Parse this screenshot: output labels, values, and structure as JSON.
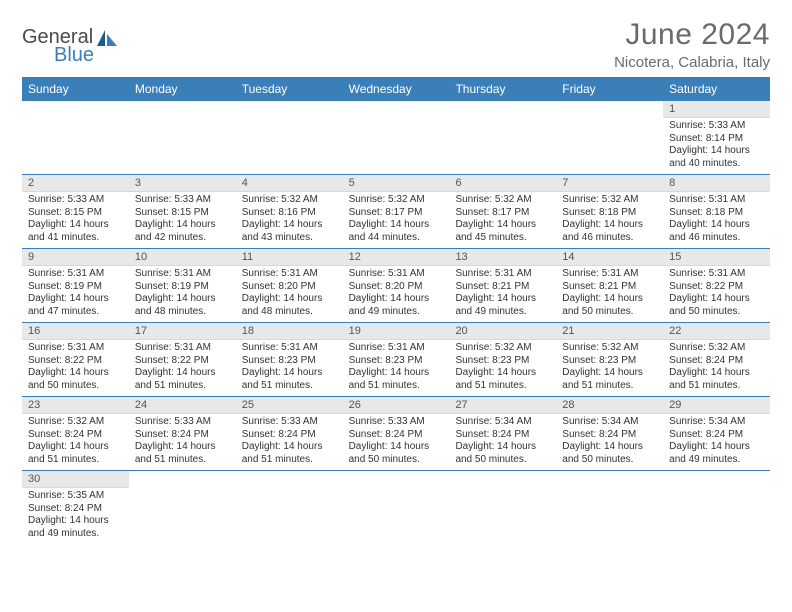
{
  "logo": {
    "text1": "General",
    "text2": "Blue"
  },
  "title": "June 2024",
  "location": "Nicotera, Calabria, Italy",
  "colors": {
    "header_bg": "#3b7fb8",
    "header_text": "#ffffff",
    "daynum_bg": "#e8e8e8",
    "border": "#3b7fb8",
    "title_color": "#6a6a6a"
  },
  "weekdays": [
    "Sunday",
    "Monday",
    "Tuesday",
    "Wednesday",
    "Thursday",
    "Friday",
    "Saturday"
  ],
  "weeks": [
    [
      {
        "n": "",
        "sr": "",
        "ss": "",
        "dl1": "",
        "dl2": ""
      },
      {
        "n": "",
        "sr": "",
        "ss": "",
        "dl1": "",
        "dl2": ""
      },
      {
        "n": "",
        "sr": "",
        "ss": "",
        "dl1": "",
        "dl2": ""
      },
      {
        "n": "",
        "sr": "",
        "ss": "",
        "dl1": "",
        "dl2": ""
      },
      {
        "n": "",
        "sr": "",
        "ss": "",
        "dl1": "",
        "dl2": ""
      },
      {
        "n": "",
        "sr": "",
        "ss": "",
        "dl1": "",
        "dl2": ""
      },
      {
        "n": "1",
        "sr": "Sunrise: 5:33 AM",
        "ss": "Sunset: 8:14 PM",
        "dl1": "Daylight: 14 hours",
        "dl2": "and 40 minutes."
      }
    ],
    [
      {
        "n": "2",
        "sr": "Sunrise: 5:33 AM",
        "ss": "Sunset: 8:15 PM",
        "dl1": "Daylight: 14 hours",
        "dl2": "and 41 minutes."
      },
      {
        "n": "3",
        "sr": "Sunrise: 5:33 AM",
        "ss": "Sunset: 8:15 PM",
        "dl1": "Daylight: 14 hours",
        "dl2": "and 42 minutes."
      },
      {
        "n": "4",
        "sr": "Sunrise: 5:32 AM",
        "ss": "Sunset: 8:16 PM",
        "dl1": "Daylight: 14 hours",
        "dl2": "and 43 minutes."
      },
      {
        "n": "5",
        "sr": "Sunrise: 5:32 AM",
        "ss": "Sunset: 8:17 PM",
        "dl1": "Daylight: 14 hours",
        "dl2": "and 44 minutes."
      },
      {
        "n": "6",
        "sr": "Sunrise: 5:32 AM",
        "ss": "Sunset: 8:17 PM",
        "dl1": "Daylight: 14 hours",
        "dl2": "and 45 minutes."
      },
      {
        "n": "7",
        "sr": "Sunrise: 5:32 AM",
        "ss": "Sunset: 8:18 PM",
        "dl1": "Daylight: 14 hours",
        "dl2": "and 46 minutes."
      },
      {
        "n": "8",
        "sr": "Sunrise: 5:31 AM",
        "ss": "Sunset: 8:18 PM",
        "dl1": "Daylight: 14 hours",
        "dl2": "and 46 minutes."
      }
    ],
    [
      {
        "n": "9",
        "sr": "Sunrise: 5:31 AM",
        "ss": "Sunset: 8:19 PM",
        "dl1": "Daylight: 14 hours",
        "dl2": "and 47 minutes."
      },
      {
        "n": "10",
        "sr": "Sunrise: 5:31 AM",
        "ss": "Sunset: 8:19 PM",
        "dl1": "Daylight: 14 hours",
        "dl2": "and 48 minutes."
      },
      {
        "n": "11",
        "sr": "Sunrise: 5:31 AM",
        "ss": "Sunset: 8:20 PM",
        "dl1": "Daylight: 14 hours",
        "dl2": "and 48 minutes."
      },
      {
        "n": "12",
        "sr": "Sunrise: 5:31 AM",
        "ss": "Sunset: 8:20 PM",
        "dl1": "Daylight: 14 hours",
        "dl2": "and 49 minutes."
      },
      {
        "n": "13",
        "sr": "Sunrise: 5:31 AM",
        "ss": "Sunset: 8:21 PM",
        "dl1": "Daylight: 14 hours",
        "dl2": "and 49 minutes."
      },
      {
        "n": "14",
        "sr": "Sunrise: 5:31 AM",
        "ss": "Sunset: 8:21 PM",
        "dl1": "Daylight: 14 hours",
        "dl2": "and 50 minutes."
      },
      {
        "n": "15",
        "sr": "Sunrise: 5:31 AM",
        "ss": "Sunset: 8:22 PM",
        "dl1": "Daylight: 14 hours",
        "dl2": "and 50 minutes."
      }
    ],
    [
      {
        "n": "16",
        "sr": "Sunrise: 5:31 AM",
        "ss": "Sunset: 8:22 PM",
        "dl1": "Daylight: 14 hours",
        "dl2": "and 50 minutes."
      },
      {
        "n": "17",
        "sr": "Sunrise: 5:31 AM",
        "ss": "Sunset: 8:22 PM",
        "dl1": "Daylight: 14 hours",
        "dl2": "and 51 minutes."
      },
      {
        "n": "18",
        "sr": "Sunrise: 5:31 AM",
        "ss": "Sunset: 8:23 PM",
        "dl1": "Daylight: 14 hours",
        "dl2": "and 51 minutes."
      },
      {
        "n": "19",
        "sr": "Sunrise: 5:31 AM",
        "ss": "Sunset: 8:23 PM",
        "dl1": "Daylight: 14 hours",
        "dl2": "and 51 minutes."
      },
      {
        "n": "20",
        "sr": "Sunrise: 5:32 AM",
        "ss": "Sunset: 8:23 PM",
        "dl1": "Daylight: 14 hours",
        "dl2": "and 51 minutes."
      },
      {
        "n": "21",
        "sr": "Sunrise: 5:32 AM",
        "ss": "Sunset: 8:23 PM",
        "dl1": "Daylight: 14 hours",
        "dl2": "and 51 minutes."
      },
      {
        "n": "22",
        "sr": "Sunrise: 5:32 AM",
        "ss": "Sunset: 8:24 PM",
        "dl1": "Daylight: 14 hours",
        "dl2": "and 51 minutes."
      }
    ],
    [
      {
        "n": "23",
        "sr": "Sunrise: 5:32 AM",
        "ss": "Sunset: 8:24 PM",
        "dl1": "Daylight: 14 hours",
        "dl2": "and 51 minutes."
      },
      {
        "n": "24",
        "sr": "Sunrise: 5:33 AM",
        "ss": "Sunset: 8:24 PM",
        "dl1": "Daylight: 14 hours",
        "dl2": "and 51 minutes."
      },
      {
        "n": "25",
        "sr": "Sunrise: 5:33 AM",
        "ss": "Sunset: 8:24 PM",
        "dl1": "Daylight: 14 hours",
        "dl2": "and 51 minutes."
      },
      {
        "n": "26",
        "sr": "Sunrise: 5:33 AM",
        "ss": "Sunset: 8:24 PM",
        "dl1": "Daylight: 14 hours",
        "dl2": "and 50 minutes."
      },
      {
        "n": "27",
        "sr": "Sunrise: 5:34 AM",
        "ss": "Sunset: 8:24 PM",
        "dl1": "Daylight: 14 hours",
        "dl2": "and 50 minutes."
      },
      {
        "n": "28",
        "sr": "Sunrise: 5:34 AM",
        "ss": "Sunset: 8:24 PM",
        "dl1": "Daylight: 14 hours",
        "dl2": "and 50 minutes."
      },
      {
        "n": "29",
        "sr": "Sunrise: 5:34 AM",
        "ss": "Sunset: 8:24 PM",
        "dl1": "Daylight: 14 hours",
        "dl2": "and 49 minutes."
      }
    ],
    [
      {
        "n": "30",
        "sr": "Sunrise: 5:35 AM",
        "ss": "Sunset: 8:24 PM",
        "dl1": "Daylight: 14 hours",
        "dl2": "and 49 minutes."
      },
      {
        "n": "",
        "sr": "",
        "ss": "",
        "dl1": "",
        "dl2": ""
      },
      {
        "n": "",
        "sr": "",
        "ss": "",
        "dl1": "",
        "dl2": ""
      },
      {
        "n": "",
        "sr": "",
        "ss": "",
        "dl1": "",
        "dl2": ""
      },
      {
        "n": "",
        "sr": "",
        "ss": "",
        "dl1": "",
        "dl2": ""
      },
      {
        "n": "",
        "sr": "",
        "ss": "",
        "dl1": "",
        "dl2": ""
      },
      {
        "n": "",
        "sr": "",
        "ss": "",
        "dl1": "",
        "dl2": ""
      }
    ]
  ]
}
